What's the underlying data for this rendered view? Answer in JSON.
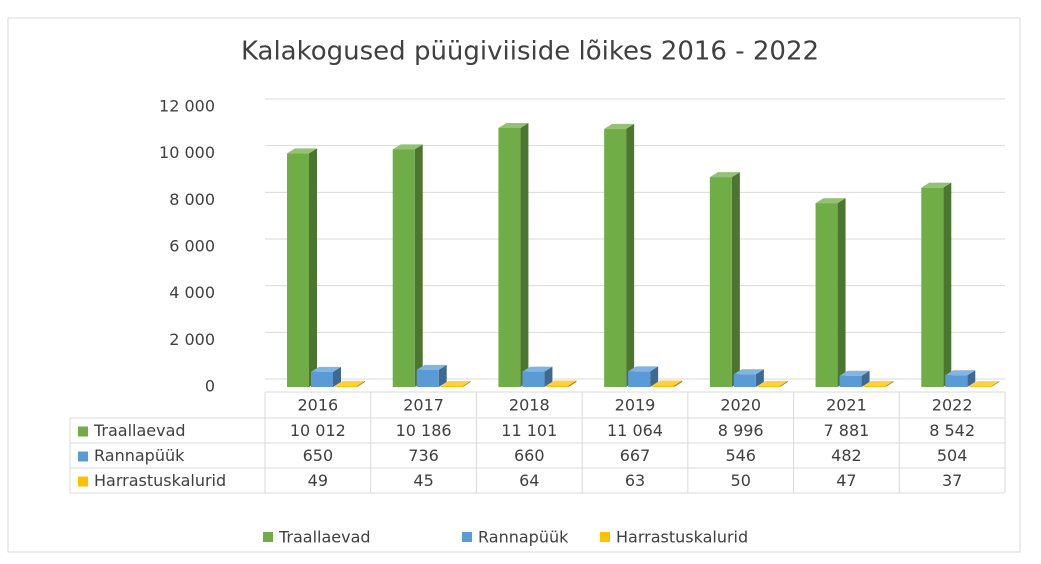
{
  "chart_data": {
    "type": "bar3d",
    "title": "Kalakogused püügiviiside lõikes 2016 - 2022",
    "categories": [
      "2016",
      "2017",
      "2018",
      "2019",
      "2020",
      "2021",
      "2022"
    ],
    "series": [
      {
        "name": "Traallaevad",
        "color": "#70ad47",
        "values": [
          10012,
          10186,
          11101,
          11064,
          8996,
          7881,
          8542
        ],
        "value_labels": [
          "10 012",
          "10 186",
          "11 101",
          "11 064",
          "8 996",
          "7 881",
          "8 542"
        ]
      },
      {
        "name": "Rannapüük",
        "color": "#5b9bd5",
        "values": [
          650,
          736,
          660,
          667,
          546,
          482,
          504
        ],
        "value_labels": [
          "650",
          "736",
          "660",
          "667",
          "546",
          "482",
          "504"
        ]
      },
      {
        "name": "Harrastuskalurid",
        "color": "#ffc000",
        "values": [
          49,
          45,
          64,
          63,
          50,
          47,
          37
        ],
        "value_labels": [
          "49",
          "45",
          "64",
          "63",
          "50",
          "47",
          "37"
        ]
      }
    ],
    "ylim": [
      0,
      12000
    ],
    "yticks": [
      0,
      {
        "value": 2000,
        "label": "2 000"
      },
      {
        "value": 4000,
        "label": "4 000"
      },
      {
        "value": 6000,
        "label": "6 000"
      },
      {
        "value": 8000,
        "label": "8 000"
      },
      {
        "value": 10000,
        "label": "10 000"
      },
      {
        "value": 12000,
        "label": "12 000"
      }
    ],
    "grid": true,
    "legend": "bottom",
    "data_table": true
  }
}
